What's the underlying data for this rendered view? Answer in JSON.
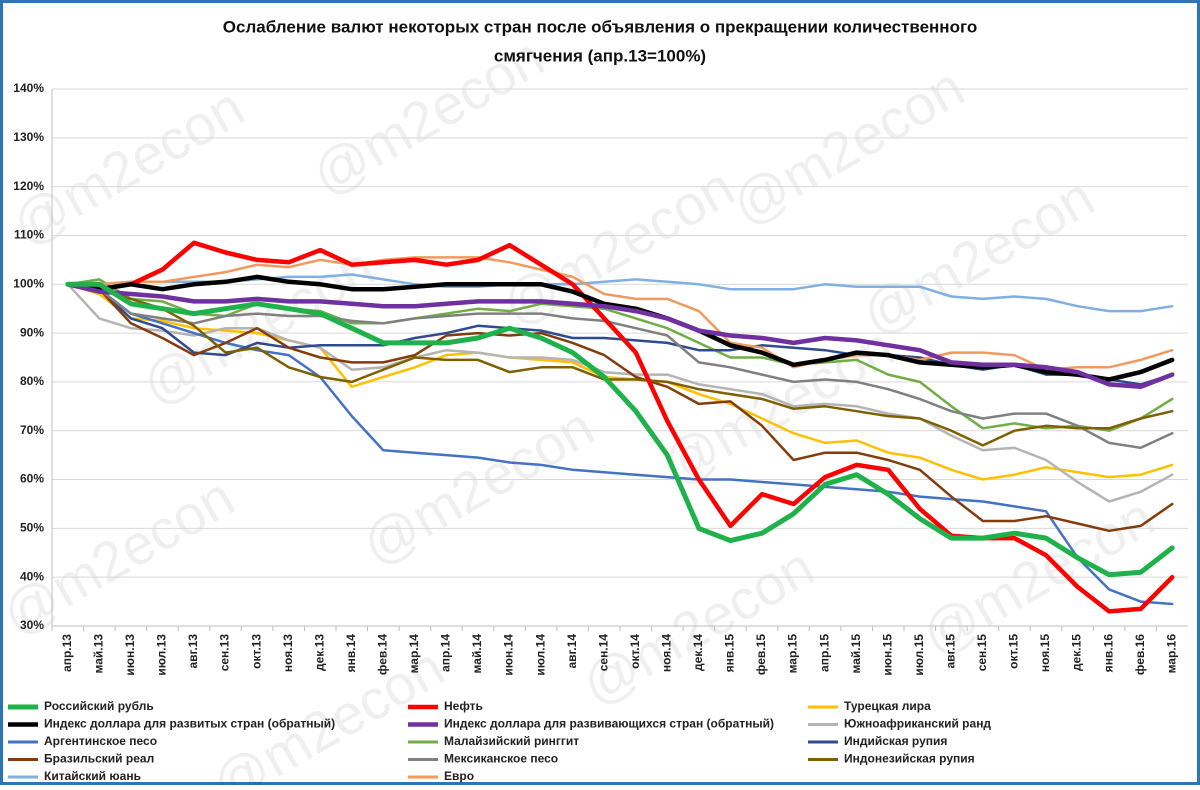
{
  "chart_data": {
    "type": "line",
    "title": [
      "Ослабление валют некоторых стран после объявления о прекращении количественного",
      "смягчения  (апр.13=100%)"
    ],
    "watermark": "@m2econ",
    "categories": [
      "апр.13",
      "май.13",
      "июн.13",
      "июл.13",
      "авг.13",
      "сен.13",
      "окт.13",
      "ноя.13",
      "дек.13",
      "янв.14",
      "фев.14",
      "мар.14",
      "апр.14",
      "май.14",
      "июн.14",
      "июл.14",
      "авг.14",
      "сен.14",
      "окт.14",
      "ноя.14",
      "дек.14",
      "янв.15",
      "фев.15",
      "мар.15",
      "апр.15",
      "май.15",
      "июн.15",
      "июл.15",
      "авг.15",
      "сен.15",
      "окт.15",
      "ноя.15",
      "дек.15",
      "янв.16",
      "фев.16",
      "мар.16"
    ],
    "ylim": [
      30,
      140
    ],
    "yticks": [
      {
        "value": 30,
        "label": "30%"
      },
      {
        "value": 40,
        "label": "40%"
      },
      {
        "value": 50,
        "label": "50%"
      },
      {
        "value": 60,
        "label": "60%"
      },
      {
        "value": 70,
        "label": "70%"
      },
      {
        "value": 80,
        "label": "80%"
      },
      {
        "value": 90,
        "label": "90%"
      },
      {
        "value": 100,
        "label": "100%"
      },
      {
        "value": 110,
        "label": "110%"
      },
      {
        "value": 120,
        "label": "120%"
      },
      {
        "value": 130,
        "label": "130%"
      },
      {
        "value": 140,
        "label": "140%"
      }
    ],
    "grid": true,
    "legend": "bottom",
    "series": [
      {
        "name": "Российский рубль",
        "color": "#1fb24a",
        "width": 5,
        "values": [
          100,
          100,
          96,
          95,
          94,
          95,
          96,
          95,
          94,
          91,
          88,
          88,
          88,
          89,
          91,
          89,
          86,
          81,
          74,
          65,
          50,
          47.5,
          49,
          53,
          59,
          61,
          57,
          52,
          48,
          48,
          49,
          48,
          44,
          40.5,
          41,
          46
        ]
      },
      {
        "name": "Нефть",
        "color": "#ff0000",
        "width": 4.5,
        "values": [
          100,
          99,
          100,
          103,
          108.5,
          106.5,
          105,
          104.5,
          107,
          104,
          104.5,
          105,
          104,
          105,
          108,
          104,
          100,
          93,
          86,
          72,
          60,
          50.5,
          57,
          55,
          60.5,
          63,
          62,
          54,
          48.5,
          48,
          48,
          44.5,
          38,
          33,
          33.5,
          40
        ]
      },
      {
        "name": "Турецкая лира",
        "color": "#ffc000",
        "width": 2.5,
        "values": [
          100,
          98,
          93,
          92.5,
          91,
          90.5,
          90,
          88.5,
          87,
          79,
          81,
          83,
          85.5,
          86,
          85,
          84.5,
          84,
          81,
          80.5,
          80,
          77.5,
          75.5,
          72.5,
          69.5,
          67.5,
          68,
          65.5,
          64.5,
          62,
          60,
          61,
          62.5,
          61.5,
          60.5,
          61,
          63
        ]
      },
      {
        "name": "Индекс доллара для развитых стран (обратный)",
        "color": "#000000",
        "width": 4.5,
        "values": [
          100,
          99,
          100,
          99,
          100,
          100.5,
          101.5,
          100.5,
          100,
          99,
          99,
          99.5,
          100,
          100,
          100,
          100,
          98.5,
          96,
          95,
          93,
          90.5,
          87.5,
          86,
          83.5,
          84.5,
          86,
          85.5,
          84,
          83.5,
          83,
          83.5,
          82,
          81.5,
          80.5,
          82,
          84.5
        ]
      },
      {
        "name": "Индекс доллара для развивающихся стран (обратный)",
        "color": "#7030a0",
        "width": 4.5,
        "values": [
          100,
          98.5,
          98,
          97.5,
          96.5,
          96.5,
          97,
          96.5,
          96.5,
          96,
          95.5,
          95.5,
          96,
          96.5,
          96.5,
          96.5,
          96,
          95.5,
          94.5,
          93,
          90.5,
          89.5,
          89,
          88,
          89,
          88.5,
          87.5,
          86.5,
          84,
          83.5,
          83.5,
          83,
          82,
          79.5,
          79,
          81.5
        ]
      },
      {
        "name": "Южноафриканский ранд",
        "color": "#b4b4b4",
        "width": 2.5,
        "values": [
          100,
          93,
          91,
          90.5,
          89.5,
          91,
          91,
          88.5,
          87,
          82.5,
          83,
          85,
          86.5,
          86,
          85,
          85,
          84.5,
          82,
          81.5,
          81.5,
          79.5,
          78.5,
          77.5,
          75,
          75.5,
          75,
          73.5,
          72.5,
          69,
          66,
          66.5,
          64,
          59.5,
          55.5,
          57.5,
          61
        ]
      },
      {
        "name": "Аргентинское песо",
        "color": "#4472c4",
        "width": 2.5,
        "values": [
          100,
          99,
          94,
          92,
          90,
          88,
          86.5,
          85.5,
          81,
          73,
          66,
          65.5,
          65,
          64.5,
          63.5,
          63,
          62,
          61.5,
          61,
          60.5,
          60,
          60,
          59.5,
          59,
          58.5,
          58,
          57.5,
          56.5,
          56,
          55.5,
          54.5,
          53.5,
          44,
          37.5,
          35,
          34.5
        ]
      },
      {
        "name": "Малайзийский ринггит",
        "color": "#70ad47",
        "width": 2.5,
        "values": [
          100,
          101,
          97,
          96.5,
          94,
          93.5,
          96,
          95,
          94.5,
          92,
          92,
          93,
          94,
          95,
          94.5,
          96,
          95.5,
          95,
          93,
          91,
          88,
          85,
          85,
          83.5,
          84,
          84.5,
          81.5,
          80,
          75,
          70.5,
          71.5,
          70.5,
          71,
          70,
          72.5,
          76.5
        ]
      },
      {
        "name": "Индийская рупия",
        "color": "#2f4b8f",
        "width": 2.5,
        "values": [
          100,
          99,
          93,
          91,
          86,
          85.5,
          88,
          87,
          87.5,
          87.5,
          87.5,
          89,
          90,
          91.5,
          91,
          90.5,
          89,
          89,
          88.5,
          88,
          86.5,
          86.5,
          87.5,
          87,
          86.5,
          85.5,
          85.5,
          85,
          83.5,
          82.5,
          83.5,
          81.5,
          81.5,
          80.5,
          79.5,
          81.5
        ]
      },
      {
        "name": "Бразильский реал",
        "color": "#843c0c",
        "width": 2.5,
        "values": [
          100,
          99,
          92,
          89,
          85.5,
          88,
          91,
          87,
          85,
          84,
          84,
          85.5,
          89.5,
          90,
          89.5,
          90,
          88,
          85.5,
          81,
          79,
          75.5,
          76,
          71,
          64,
          65.5,
          65.5,
          64,
          62,
          56.5,
          51.5,
          51.5,
          52.5,
          51,
          49.5,
          50.5,
          55
        ]
      },
      {
        "name": "Мексиканское песо",
        "color": "#808080",
        "width": 2.5,
        "values": [
          100,
          99,
          94,
          93,
          92,
          93.5,
          94,
          93.5,
          93.5,
          92.5,
          92,
          93,
          93.5,
          94,
          94,
          94,
          93,
          92.5,
          91,
          89.5,
          84,
          83,
          81.5,
          80,
          80.5,
          80,
          78.5,
          76.5,
          74,
          72.5,
          73.5,
          73.5,
          71,
          67.5,
          66.5,
          69.5
        ]
      },
      {
        "name": "Индонезийская рупия",
        "color": "#7f6000",
        "width": 2.5,
        "values": [
          100,
          99,
          97,
          95,
          91.5,
          86,
          87,
          83,
          81,
          80,
          82.5,
          85,
          84.5,
          84.5,
          82,
          83,
          83,
          80.5,
          80.5,
          80,
          78.5,
          77.5,
          76.5,
          74.5,
          75,
          74,
          73,
          72.5,
          70,
          67,
          70,
          71,
          70.5,
          70.5,
          72.5,
          74
        ]
      },
      {
        "name": "Китайский юань",
        "color": "#7fb0e0",
        "width": 2.5,
        "values": [
          100,
          100,
          100.5,
          100.5,
          100.5,
          100.5,
          101,
          101.5,
          101.5,
          102,
          101,
          100,
          99.5,
          99.5,
          100,
          100,
          100,
          100.5,
          101,
          100.5,
          100,
          99,
          99,
          99,
          100,
          99.5,
          99.5,
          99.5,
          97.5,
          97,
          97.5,
          97,
          95.5,
          94.5,
          94.5,
          95.5
        ]
      },
      {
        "name": "Евро",
        "color": "#f19a60",
        "width": 2.5,
        "values": [
          100,
          100,
          100.5,
          100.5,
          101.5,
          102.5,
          104,
          103.5,
          105,
          104,
          105,
          105.5,
          105.5,
          105.5,
          104.5,
          103,
          101.5,
          98,
          97,
          97,
          94.5,
          88,
          87,
          83,
          84.5,
          85.5,
          85.5,
          84.5,
          86,
          86,
          85.5,
          82.5,
          83,
          83,
          84.5,
          86.5
        ]
      }
    ]
  }
}
